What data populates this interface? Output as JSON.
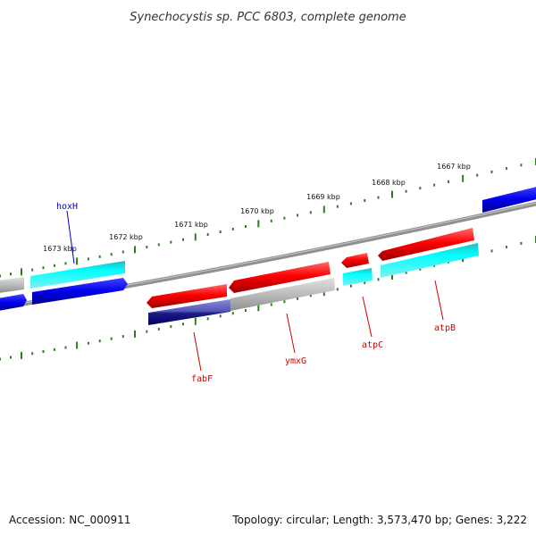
{
  "title": "Synechocystis sp. PCC 6803, complete genome",
  "colors": {
    "background": "#ffffff",
    "backbone": "#808080",
    "tick": "#2e7d1f",
    "label_blue": "#0000cc",
    "label_red": "#cc0000",
    "cds_red": "#ff0000",
    "cds_cyan": "#00ffff",
    "cds_blue": "#0000ee",
    "cds_gray": "#bbbbbb",
    "cds_violet": "#5555bb"
  },
  "kbp_labels": [
    "1667 kbp",
    "1668 kbp",
    "1669 kbp",
    "1670 kbp",
    "1671 kbp",
    "1672 kbp",
    "1673 kbp"
  ],
  "genes": [
    {
      "name": "hoxH",
      "color": "#0000cc"
    },
    {
      "name": "fabF",
      "color": "#cc0000"
    },
    {
      "name": "ymxG",
      "color": "#cc0000"
    },
    {
      "name": "atpC",
      "color": "#cc0000"
    },
    {
      "name": "atpB",
      "color": "#cc0000"
    }
  ],
  "footer": {
    "accession": "Accession: NC_000911",
    "topology": "Topology: circular; Length: 3,573,470 bp; Genes: 3,222"
  }
}
